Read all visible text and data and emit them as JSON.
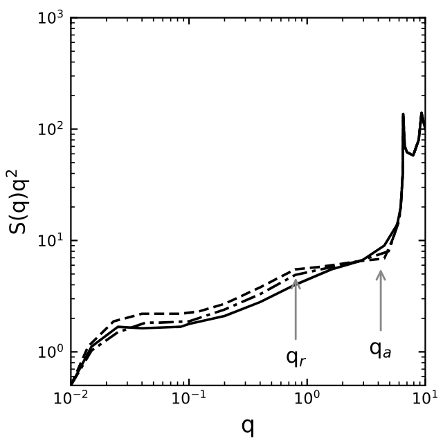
{
  "chart_data": {
    "type": "line",
    "xlabel": "q",
    "ylabel": "S(q)q$^{2}$",
    "log": "xy",
    "grid": false,
    "xlim": [
      0.01,
      10
    ],
    "ylim": [
      0.5,
      1000
    ],
    "xticks": [
      {
        "value": 0.01,
        "label": "10$^{−2}$"
      },
      {
        "value": 0.1,
        "label": "10$^{−1}$"
      },
      {
        "value": 1,
        "label": "10$^{0}$"
      },
      {
        "value": 10,
        "label": "10$^{1}$"
      }
    ],
    "yticks": [
      {
        "value": 1,
        "label": "10$^{0}$"
      },
      {
        "value": 10,
        "label": "10$^{1}$"
      },
      {
        "value": 100,
        "label": "10$^{2}$"
      },
      {
        "value": 1000,
        "label": "10$^{3}$"
      }
    ],
    "series": [
      {
        "color": "#000000",
        "line_style": "solid",
        "x": [
          0.01,
          0.015,
          0.025,
          0.04,
          0.085,
          0.1,
          0.2,
          0.4,
          0.79,
          1.6,
          2.9,
          4.5,
          5.8,
          6.2,
          6.45,
          6.5,
          6.7,
          7.0,
          7.9,
          8.8,
          9.3,
          10
        ],
        "values": [
          0.5,
          1.12,
          1.68,
          1.63,
          1.68,
          1.78,
          2.1,
          2.8,
          4,
          5.5,
          6.6,
          9,
          14,
          20,
          40,
          137,
          70,
          62,
          58,
          80,
          140,
          100
        ]
      },
      {
        "color": "#000000",
        "line_style": "dashed",
        "x": [
          0.01,
          0.014,
          0.023,
          0.04,
          0.085,
          0.12,
          0.2,
          0.4,
          0.79,
          1.3,
          2.7,
          4.5,
          5.3,
          6.0,
          6.2,
          6.45,
          6.5,
          6.7,
          7.0,
          7.9,
          8.8,
          9.3,
          10
        ],
        "values": [
          0.5,
          1.12,
          1.88,
          2.2,
          2.2,
          2.3,
          2.7,
          3.8,
          5.5,
          5.8,
          6.5,
          6.9,
          10.3,
          16,
          20,
          40,
          137,
          70,
          62,
          58,
          80,
          140,
          100
        ]
      },
      {
        "color": "#000000",
        "line_style": "dashdot",
        "x": [
          0.01,
          0.015,
          0.025,
          0.043,
          0.056,
          0.1,
          0.2,
          0.4,
          0.79,
          1.3,
          2.7,
          4.9,
          6.0,
          6.2,
          6.45,
          6.5,
          6.7,
          7.0,
          7.9,
          8.8,
          9.3,
          10
        ],
        "values": [
          0.5,
          1.03,
          1.5,
          1.83,
          1.83,
          1.88,
          2.4,
          3.3,
          4.9,
          5.5,
          6.5,
          8,
          15,
          20,
          40,
          137,
          70,
          62,
          58,
          80,
          140,
          100
        ]
      }
    ],
    "annotations": [
      {
        "text": "q$_{r}$",
        "x": 0.8,
        "y": 5.0
      },
      {
        "text": "q$_{a}$",
        "x": 4.2,
        "y": 6.0
      }
    ]
  }
}
